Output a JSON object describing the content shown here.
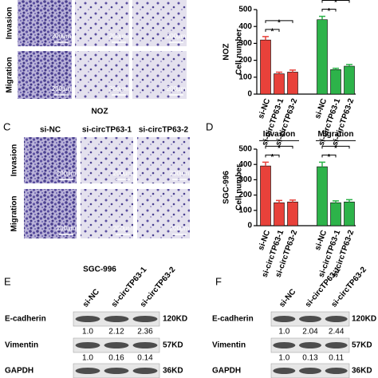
{
  "panel_a": {
    "rows": [
      "Invasion",
      "Migration"
    ],
    "scale_bar": "200μm",
    "cell_line": "NOZ"
  },
  "panel_c": {
    "label": "C",
    "columns": [
      "si-NC",
      "si-circTP63-1",
      "si-circTP63-2"
    ],
    "rows": [
      "Invasion",
      "Migration"
    ],
    "scale_bar": "200μm",
    "cell_line": "SGC-996"
  },
  "chart_data": [
    {
      "type": "bar",
      "y_label": "Cell number",
      "cell_line": "NOZ",
      "categories": [
        "si-NC",
        "si-circTP63-1",
        "si-circTP63-2"
      ],
      "series": [
        {
          "color": "#e8413a",
          "values": [
            320,
            120,
            130
          ],
          "errors": [
            20,
            10,
            12
          ]
        },
        {
          "color": "#2db34a",
          "values": [
            440,
            145,
            165
          ],
          "errors": [
            20,
            8,
            10
          ]
        }
      ],
      "ylim": [
        0,
        500
      ],
      "yticks": [
        0,
        100,
        200,
        300,
        400,
        500
      ],
      "significance": [
        "*",
        "*",
        "*",
        "*"
      ]
    },
    {
      "type": "bar",
      "label": "D",
      "y_label": "Cell number",
      "cell_line": "SGC-996",
      "categories": [
        "si-NC",
        "si-circTP63-1",
        "si-circTP63-2"
      ],
      "series": [
        {
          "name": "Invasion",
          "color": "#e8413a",
          "values": [
            390,
            150,
            155
          ],
          "errors": [
            25,
            15,
            12
          ]
        },
        {
          "name": "Migration",
          "color": "#2db34a",
          "values": [
            385,
            150,
            155
          ],
          "errors": [
            30,
            12,
            15
          ]
        }
      ],
      "ylim": [
        0,
        500
      ],
      "yticks": [
        0,
        100,
        200,
        300,
        400,
        500
      ],
      "significance": [
        "*",
        "*",
        "*",
        "*"
      ]
    }
  ],
  "panel_e": {
    "label": "E",
    "lanes": [
      "si-NC",
      "si-circTP63-1",
      "si-circTP63-2"
    ],
    "rows": [
      {
        "protein": "E-cadherin",
        "size": "120KD",
        "ratios": [
          "1.0",
          "2.12",
          "2.36"
        ]
      },
      {
        "protein": "Vimentin",
        "size": "57KD",
        "ratios": [
          "1.0",
          "0.16",
          "0.14"
        ]
      },
      {
        "protein": "GAPDH",
        "size": "36KD"
      }
    ]
  },
  "panel_f": {
    "label": "F",
    "lanes": [
      "si-NC",
      "si-circTP63-1",
      "si-circTP63-2"
    ],
    "rows": [
      {
        "protein": "E-cadherin",
        "size": "120KD",
        "ratios": [
          "1.0",
          "2.04",
          "2.44"
        ]
      },
      {
        "protein": "Vimentin",
        "size": "57KD",
        "ratios": [
          "1.0",
          "0.13",
          "0.11"
        ]
      },
      {
        "protein": "GAPDH",
        "size": "36KD"
      }
    ]
  }
}
